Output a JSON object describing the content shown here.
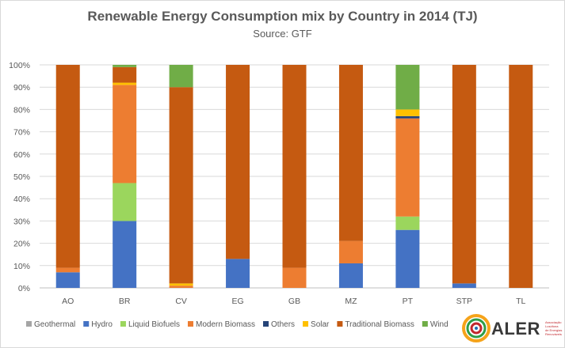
{
  "chart_data": {
    "type": "stacked-bar-100",
    "title": "Renewable Energy Consumption mix by Country in 2014 (TJ)",
    "subtitle": "Source: GTF",
    "ylim": [
      0,
      100
    ],
    "yticks": [
      "0%",
      "10%",
      "20%",
      "30%",
      "40%",
      "50%",
      "60%",
      "70%",
      "80%",
      "90%",
      "100%"
    ],
    "grid": true,
    "legend_position": "bottom",
    "categories": [
      "AO",
      "BR",
      "CV",
      "EG",
      "GB",
      "MZ",
      "PT",
      "STP",
      "TL"
    ],
    "series": [
      {
        "name": "Geothermal",
        "color": "#a5a5a5",
        "values": [
          0,
          0,
          0,
          0,
          0,
          0,
          0,
          0,
          0
        ]
      },
      {
        "name": "Hydro",
        "color": "#4472c4",
        "values": [
          7,
          30,
          0,
          13,
          0,
          11,
          26,
          2,
          0
        ]
      },
      {
        "name": "Liquid Biofuels",
        "color": "#9bd65d",
        "values": [
          0,
          17,
          0,
          0,
          0,
          0,
          6,
          0,
          0
        ]
      },
      {
        "name": "Modern Biomass",
        "color": "#ed7d31",
        "values": [
          2,
          44,
          1,
          0,
          9,
          10,
          44,
          0,
          0
        ]
      },
      {
        "name": "Others",
        "color": "#264478",
        "values": [
          0,
          0,
          0,
          0,
          0,
          0,
          1,
          0,
          0
        ]
      },
      {
        "name": "Solar",
        "color": "#ffc000",
        "values": [
          0,
          1,
          1,
          0,
          0,
          0,
          3,
          0,
          0
        ]
      },
      {
        "name": "Traditional Biomass",
        "color": "#c55a11",
        "values": [
          91,
          7,
          88,
          87,
          91,
          79,
          0,
          98,
          100
        ]
      },
      {
        "name": "Wind",
        "color": "#70ad47",
        "values": [
          0,
          1,
          10,
          0,
          0,
          0,
          20,
          0,
          0
        ]
      }
    ]
  },
  "logo": {
    "name": "ALER",
    "tagline": "Associação Lusófona de Energias Renováveis"
  }
}
